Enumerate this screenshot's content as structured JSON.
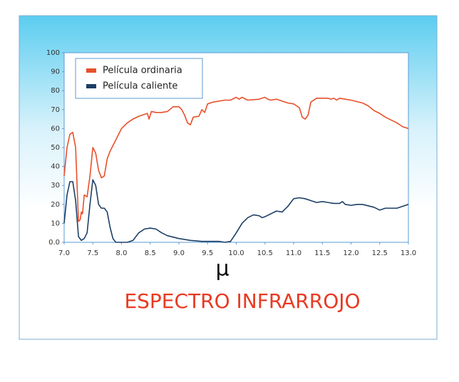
{
  "chart_data": {
    "type": "line",
    "title": "ESPECTRO INFRARROJO",
    "x_label": "μ",
    "xlim": [
      7.0,
      13.0
    ],
    "ylim": [
      0,
      100
    ],
    "xticks": [
      {
        "value": 7,
        "label": "7.0"
      },
      7.5,
      {
        "value": 8,
        "label": "8.0"
      },
      8.5,
      {
        "value": 9,
        "label": "9.0"
      },
      9.5,
      {
        "value": 10,
        "label": "10.0"
      },
      10.5,
      {
        "value": 11,
        "label": "11.0"
      },
      11.5,
      {
        "value": 12,
        "label": "12.0"
      },
      12.5,
      {
        "value": 13,
        "label": "13.0"
      }
    ],
    "yticks": [
      {
        "value": 0,
        "label": "0.0"
      },
      10,
      20,
      30,
      40,
      50,
      60,
      70,
      80,
      90,
      100
    ],
    "legend": "upper-left",
    "series": [
      {
        "name": "Película ordinaria",
        "color": "#e8502a",
        "x": [
          7.0,
          7.05,
          7.1,
          7.15,
          7.2,
          7.25,
          7.28,
          7.3,
          7.32,
          7.35,
          7.4,
          7.45,
          7.5,
          7.55,
          7.6,
          7.65,
          7.7,
          7.75,
          7.8,
          7.9,
          8.0,
          8.1,
          8.2,
          8.3,
          8.4,
          8.45,
          8.48,
          8.52,
          8.6,
          8.7,
          8.8,
          8.9,
          9.0,
          9.05,
          9.1,
          9.15,
          9.2,
          9.25,
          9.35,
          9.4,
          9.45,
          9.5,
          9.6,
          9.8,
          9.9,
          10.0,
          10.05,
          10.1,
          10.2,
          10.4,
          10.5,
          10.55,
          10.6,
          10.7,
          10.8,
          10.9,
          11.0,
          11.1,
          11.15,
          11.2,
          11.25,
          11.3,
          11.4,
          11.5,
          11.6,
          11.65,
          11.7,
          11.75,
          11.8,
          11.9,
          12.0,
          12.2,
          12.3,
          12.4,
          12.5,
          12.6,
          12.8,
          12.9,
          13.0
        ],
        "values": [
          35,
          50,
          57,
          58,
          50,
          11,
          12,
          16,
          15,
          25,
          24,
          35,
          50,
          47,
          38,
          34,
          35,
          44,
          48,
          54,
          60,
          63,
          65,
          66.5,
          67.5,
          68,
          65,
          69,
          68.5,
          68.5,
          69,
          71.5,
          71.5,
          70,
          67,
          63,
          62,
          66,
          66.5,
          70,
          68.5,
          73,
          74,
          75,
          75,
          76.5,
          75.5,
          76.5,
          75,
          75.5,
          76.5,
          75.5,
          75,
          75.5,
          74.5,
          73.5,
          73,
          71,
          66,
          65,
          67,
          74,
          76,
          76,
          76,
          75.5,
          76,
          75,
          76,
          75.5,
          75,
          73.5,
          72,
          69.5,
          68,
          66,
          63,
          61,
          60
        ]
      },
      {
        "name": "Película caliente",
        "color": "#1d3f66",
        "x": [
          7.0,
          7.05,
          7.1,
          7.15,
          7.2,
          7.25,
          7.3,
          7.35,
          7.4,
          7.45,
          7.5,
          7.55,
          7.6,
          7.65,
          7.7,
          7.75,
          7.8,
          7.85,
          7.9,
          8.0,
          8.1,
          8.2,
          8.3,
          8.4,
          8.5,
          8.6,
          8.7,
          8.8,
          9.0,
          9.2,
          9.4,
          9.6,
          9.7,
          9.8,
          9.9,
          10.0,
          10.1,
          10.2,
          10.3,
          10.4,
          10.45,
          10.5,
          10.6,
          10.7,
          10.8,
          10.9,
          11.0,
          11.1,
          11.2,
          11.3,
          11.4,
          11.5,
          11.6,
          11.7,
          11.8,
          11.85,
          11.9,
          12.0,
          12.1,
          12.2,
          12.4,
          12.5,
          12.6,
          12.8,
          12.9,
          13.0
        ],
        "values": [
          10,
          25,
          32,
          32,
          22,
          3,
          1,
          2,
          5,
          20,
          33,
          30,
          20,
          18,
          18,
          16,
          8,
          2,
          0,
          0,
          0,
          1,
          5,
          7,
          7.5,
          7,
          5,
          3.5,
          2,
          1,
          0.5,
          0.5,
          0.5,
          0,
          0.5,
          5,
          10,
          13,
          14.5,
          14,
          13,
          13.5,
          15,
          16.5,
          16,
          19,
          23,
          23.5,
          23,
          22,
          21,
          21.5,
          21,
          20.5,
          20.5,
          21.5,
          20,
          19.5,
          20,
          20,
          18.5,
          17,
          18,
          18,
          19,
          20
        ]
      }
    ]
  }
}
